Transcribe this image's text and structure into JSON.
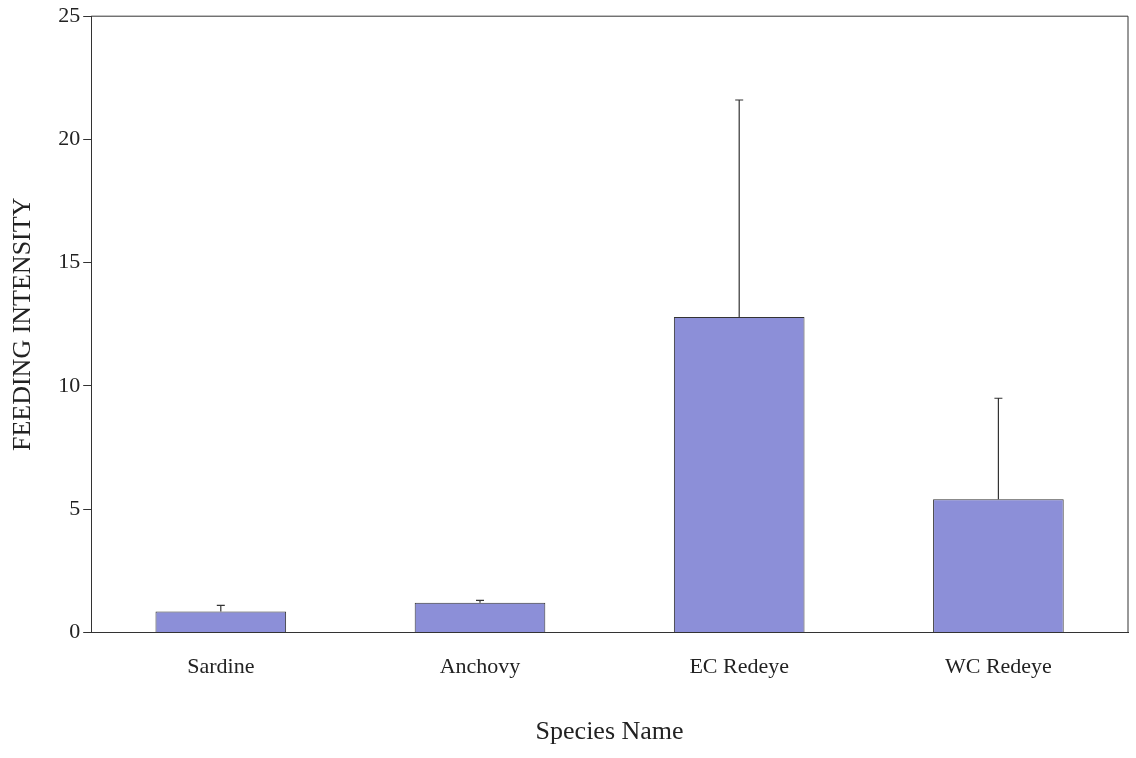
{
  "chart_data": {
    "type": "bar",
    "xlabel": "Species Name",
    "ylabel": "FEEDING INTENSITY",
    "categories": [
      "Sardine",
      "Anchovy",
      "EC Redeye",
      "WC Redeye"
    ],
    "values": [
      0.85,
      1.2,
      12.8,
      5.4
    ],
    "errors": [
      [
        0.85,
        1.1
      ],
      [
        1.2,
        1.3
      ],
      [
        12.8,
        21.6
      ],
      [
        5.4,
        9.5
      ]
    ],
    "color": "#8c8fd8",
    "ylim": [
      0,
      25
    ],
    "yticks": [
      0,
      5,
      10,
      15,
      20,
      25
    ],
    "grid": false,
    "legend": false
  }
}
